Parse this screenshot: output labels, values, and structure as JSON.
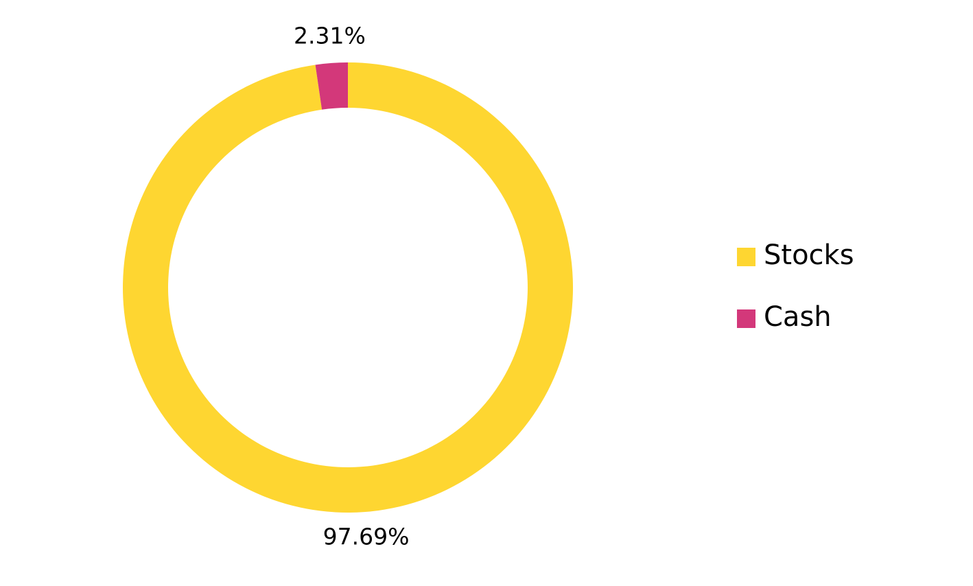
{
  "chart_data": {
    "type": "donut",
    "categories": [
      "Stocks",
      "Cash"
    ],
    "values": [
      97.69,
      2.31
    ],
    "value_labels": [
      "97.69%",
      "2.31%"
    ],
    "colors": [
      "#fed631",
      "#d3387a"
    ],
    "legend": "right"
  }
}
